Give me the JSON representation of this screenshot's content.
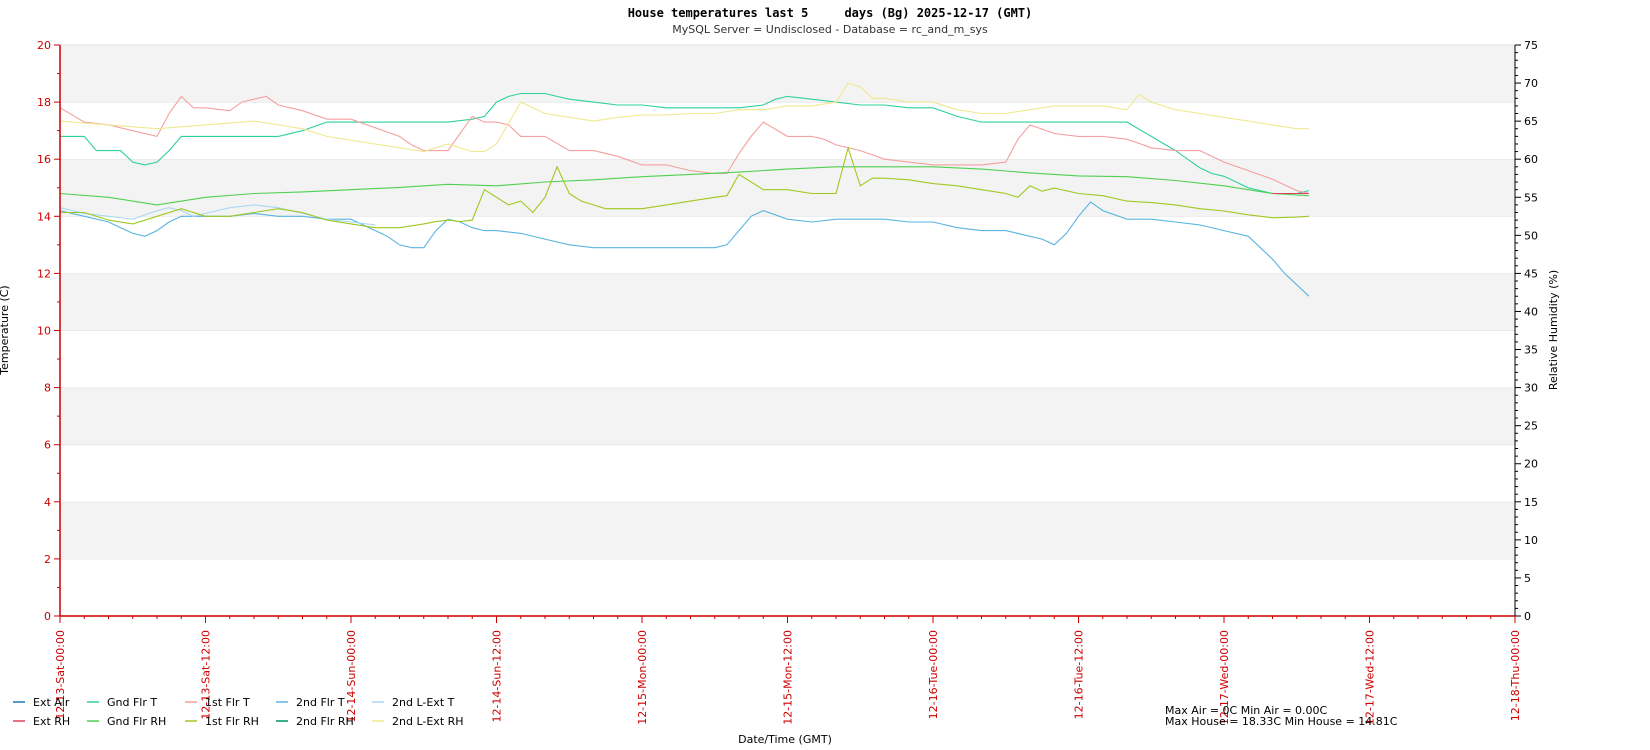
{
  "chart_data": {
    "type": "line",
    "title": "House temperatures last 5     days (Bg) 2025-12-17 (GMT)",
    "subtitle": "MySQL Server = Undisclosed - Database = rc_and_m_sys",
    "xlabel": "Date/Time (GMT)",
    "ylabel_left": "Temperature (C)",
    "ylabel_right": "Relative Humidity (%)",
    "xlim": [
      0,
      120
    ],
    "ylim_left": [
      0,
      20
    ],
    "ylim_right": [
      0,
      75
    ],
    "x_unit": "hours since 2025-12-13 00:00 GMT",
    "grid": "alternating horizontal bands",
    "left_ticks": [
      "0",
      "2",
      "4",
      "6",
      "8",
      "10",
      "12",
      "14",
      "16",
      "18",
      "20"
    ],
    "right_ticks": [
      "0",
      "5",
      "10",
      "15",
      "20",
      "25",
      "30",
      "35",
      "40",
      "45",
      "50",
      "55",
      "60",
      "65",
      "70",
      "75"
    ],
    "x_ticks": [
      {
        "x": 0,
        "label": "12-13-Sat-00:00"
      },
      {
        "x": 12,
        "label": "12-13-Sat-12:00"
      },
      {
        "x": 24,
        "label": "12-14-Sun-00:00"
      },
      {
        "x": 36,
        "label": "12-14-Sun-12:00"
      },
      {
        "x": 48,
        "label": "12-15-Mon-00:00"
      },
      {
        "x": 60,
        "label": "12-15-Mon-12:00"
      },
      {
        "x": 72,
        "label": "12-16-Tue-00:00"
      },
      {
        "x": 84,
        "label": "12-16-Tue-12:00"
      },
      {
        "x": 96,
        "label": "12-17-Wed-00:00"
      },
      {
        "x": 108,
        "label": "12-17-Wed-12:00"
      },
      {
        "x": 120,
        "label": "12-18-Thu-00:00"
      }
    ],
    "legend": [
      {
        "name": "Ext Air",
        "color": "#1f77b4"
      },
      {
        "name": "Gnd Flr T",
        "color": "#2fd0a0"
      },
      {
        "name": "1st Flr T",
        "color": "#f4a0a0"
      },
      {
        "name": "2nd Flr T",
        "color": "#5ab4e0"
      },
      {
        "name": "2nd L-Ext T",
        "color": "#a8d8f0"
      },
      {
        "name": "Ext RH",
        "color": "#e04060"
      },
      {
        "name": "Gnd Flr RH",
        "color": "#50d050"
      },
      {
        "name": "1st Flr RH",
        "color": "#a0c820"
      },
      {
        "name": "2nd Flr RH",
        "color": "#00905a"
      },
      {
        "name": "2nd L-Ext RH",
        "color": "#f0e890"
      }
    ],
    "series": [
      {
        "name": "Gnd Flr T",
        "axis": "left",
        "color": "#2fd0a0",
        "x": [
          0,
          2,
          3,
          5,
          6,
          7,
          8,
          9,
          10,
          11,
          12,
          18,
          20,
          22,
          24,
          26,
          28,
          30,
          32,
          34,
          35,
          36,
          37,
          38,
          39,
          40,
          41,
          42,
          44,
          46,
          48,
          50,
          52,
          54,
          56,
          58,
          59,
          60,
          62,
          64,
          66,
          68,
          70,
          72,
          74,
          76,
          78,
          80,
          82,
          84,
          86,
          88,
          90,
          92,
          93,
          94,
          95,
          96,
          97,
          98,
          99,
          100,
          101,
          102,
          103
        ],
        "y": [
          16.8,
          16.8,
          16.3,
          16.3,
          15.9,
          15.8,
          15.9,
          16.3,
          16.8,
          16.8,
          16.8,
          16.8,
          17.0,
          17.3,
          17.3,
          17.3,
          17.3,
          17.3,
          17.3,
          17.4,
          17.5,
          18.0,
          18.2,
          18.3,
          18.3,
          18.3,
          18.2,
          18.1,
          18.0,
          17.9,
          17.9,
          17.8,
          17.8,
          17.8,
          17.8,
          17.9,
          18.1,
          18.2,
          18.1,
          18.0,
          17.9,
          17.9,
          17.8,
          17.8,
          17.5,
          17.3,
          17.3,
          17.3,
          17.3,
          17.3,
          17.3,
          17.3,
          16.8,
          16.3,
          16.0,
          15.7,
          15.5,
          15.4,
          15.2,
          15.0,
          14.9,
          14.8,
          14.8,
          14.8,
          14.9
        ]
      },
      {
        "name": "1st Flr T",
        "axis": "left",
        "color": "#f4a0a0",
        "x": [
          0,
          2,
          4,
          6,
          8,
          9,
          10,
          11,
          12,
          14,
          15,
          16,
          17,
          18,
          20,
          22,
          24,
          26,
          28,
          29,
          30,
          32,
          33,
          34,
          35,
          36,
          37,
          38,
          40,
          42,
          44,
          46,
          48,
          50,
          52,
          54,
          55,
          56,
          57,
          58,
          60,
          62,
          63,
          64,
          66,
          68,
          70,
          72,
          74,
          76,
          78,
          79,
          80,
          82,
          84,
          86,
          88,
          90,
          92,
          94,
          96,
          98,
          100,
          102,
          103
        ],
        "y": [
          17.8,
          17.3,
          17.2,
          17.0,
          16.8,
          17.6,
          18.2,
          17.8,
          17.8,
          17.7,
          18.0,
          18.1,
          18.2,
          17.9,
          17.7,
          17.4,
          17.4,
          17.1,
          16.8,
          16.5,
          16.3,
          16.3,
          16.9,
          17.5,
          17.3,
          17.3,
          17.2,
          16.8,
          16.8,
          16.3,
          16.3,
          16.1,
          15.8,
          15.8,
          15.6,
          15.5,
          15.5,
          16.2,
          16.8,
          17.3,
          16.8,
          16.8,
          16.7,
          16.5,
          16.3,
          16.0,
          15.9,
          15.8,
          15.8,
          15.8,
          15.9,
          16.7,
          17.2,
          16.9,
          16.8,
          16.8,
          16.7,
          16.4,
          16.3,
          16.3,
          15.9,
          15.6,
          15.3,
          14.9,
          14.8
        ]
      },
      {
        "name": "2nd Flr T",
        "axis": "left",
        "color": "#5ab4e0",
        "x": [
          0,
          2,
          4,
          5,
          6,
          7,
          8,
          9,
          10,
          12,
          14,
          16,
          18,
          20,
          22,
          24,
          25,
          26,
          27,
          28,
          29,
          30,
          31,
          32,
          33,
          34,
          35,
          36,
          38,
          40,
          42,
          44,
          46,
          48,
          50,
          52,
          54,
          55,
          56,
          57,
          58,
          60,
          62,
          64,
          66,
          68,
          70,
          72,
          74,
          76,
          78,
          80,
          81,
          82,
          83,
          84,
          85,
          86,
          88,
          90,
          92,
          94,
          96,
          98,
          99,
          100,
          101,
          102,
          103
        ],
        "y": [
          14.2,
          14.0,
          13.8,
          13.6,
          13.4,
          13.3,
          13.5,
          13.8,
          14.0,
          14.0,
          14.0,
          14.1,
          14.0,
          14.0,
          13.9,
          13.9,
          13.7,
          13.5,
          13.3,
          13.0,
          12.9,
          12.9,
          13.5,
          13.9,
          13.8,
          13.6,
          13.5,
          13.5,
          13.4,
          13.2,
          13.0,
          12.9,
          12.9,
          12.9,
          12.9,
          12.9,
          12.9,
          13.0,
          13.5,
          14.0,
          14.2,
          13.9,
          13.8,
          13.9,
          13.9,
          13.9,
          13.8,
          13.8,
          13.6,
          13.5,
          13.5,
          13.3,
          13.2,
          13.0,
          13.4,
          14.0,
          14.5,
          14.2,
          13.9,
          13.9,
          13.8,
          13.7,
          13.5,
          13.3,
          12.9,
          12.5,
          12.0,
          11.6,
          11.2
        ]
      },
      {
        "name": "2nd L-Ext T",
        "axis": "left",
        "color": "#a8d8f0",
        "x": [
          0,
          2,
          4,
          6,
          8,
          9,
          10,
          11,
          12,
          14,
          16,
          18,
          20,
          22,
          24,
          26
        ],
        "y": [
          14.3,
          14.1,
          14.0,
          13.9,
          14.2,
          14.3,
          14.2,
          14.0,
          14.1,
          14.3,
          14.4,
          14.3,
          14.1,
          13.9,
          13.8,
          13.7
        ]
      },
      {
        "name": "Gnd Flr RH",
        "axis": "right",
        "color": "#50d050",
        "x": [
          0,
          4,
          8,
          12,
          16,
          20,
          24,
          28,
          32,
          36,
          40,
          44,
          48,
          52,
          56,
          60,
          64,
          68,
          72,
          76,
          80,
          84,
          88,
          92,
          96,
          100,
          103
        ],
        "y": [
          55.5,
          55.0,
          54.0,
          55.0,
          55.5,
          55.7,
          56.0,
          56.3,
          56.7,
          56.5,
          57.0,
          57.3,
          57.7,
          58.0,
          58.3,
          58.7,
          59.0,
          59.0,
          59.0,
          58.7,
          58.2,
          57.8,
          57.7,
          57.2,
          56.5,
          55.5,
          55.2
        ]
      },
      {
        "name": "1st Flr RH",
        "axis": "right",
        "color": "#a0c820",
        "x": [
          0,
          2,
          4,
          6,
          8,
          10,
          12,
          14,
          16,
          18,
          20,
          22,
          24,
          26,
          28,
          30,
          31,
          32,
          33,
          34,
          35,
          36,
          37,
          38,
          39,
          40,
          41,
          42,
          43,
          44,
          45,
          46,
          48,
          50,
          52,
          54,
          55,
          56,
          58,
          60,
          62,
          64,
          65,
          66,
          67,
          68,
          70,
          72,
          74,
          76,
          78,
          79,
          80,
          81,
          82,
          84,
          86,
          88,
          90,
          92,
          94,
          96,
          98,
          100,
          102,
          103
        ],
        "y": [
          53.0,
          53.0,
          52.0,
          51.5,
          52.5,
          53.5,
          52.5,
          52.5,
          53.0,
          53.5,
          53.0,
          52.0,
          51.5,
          51.0,
          51.0,
          51.5,
          51.8,
          52.0,
          51.8,
          52.0,
          56.0,
          55.0,
          54.0,
          54.5,
          53.0,
          55.0,
          59.0,
          55.5,
          54.5,
          54.0,
          53.5,
          53.5,
          53.5,
          54.0,
          54.5,
          55.0,
          55.2,
          58.0,
          56.0,
          56.0,
          55.5,
          55.5,
          61.5,
          56.5,
          57.5,
          57.5,
          57.3,
          56.8,
          56.5,
          56.0,
          55.5,
          55.0,
          56.5,
          55.8,
          56.2,
          55.5,
          55.2,
          54.5,
          54.3,
          54.0,
          53.5,
          53.2,
          52.7,
          52.3,
          52.4,
          52.5
        ]
      },
      {
        "name": "2nd L-Ext RH",
        "axis": "right",
        "color": "#f0e890",
        "x": [
          0,
          4,
          8,
          12,
          16,
          20,
          22,
          24,
          26,
          28,
          30,
          32,
          33,
          34,
          35,
          36,
          38,
          40,
          42,
          44,
          46,
          48,
          50,
          52,
          54,
          56,
          58,
          60,
          62,
          64,
          65,
          66,
          67,
          68,
          70,
          72,
          74,
          76,
          78,
          80,
          82,
          84,
          86,
          88,
          89,
          90,
          92,
          94,
          96,
          98,
          100,
          102,
          103
        ],
        "y": [
          65.0,
          64.5,
          64.0,
          64.5,
          65.0,
          64.0,
          63.0,
          62.5,
          62.0,
          61.5,
          61.0,
          62.0,
          61.5,
          61.0,
          61.0,
          62.0,
          67.5,
          66.0,
          65.5,
          65.0,
          65.5,
          65.8,
          65.8,
          66.0,
          66.0,
          66.5,
          66.5,
          67.0,
          67.0,
          67.5,
          70.0,
          69.5,
          68.0,
          68.0,
          67.5,
          67.5,
          66.5,
          66.0,
          66.0,
          66.5,
          67.0,
          67.0,
          67.0,
          66.5,
          68.5,
          67.5,
          66.5,
          66.0,
          65.5,
          65.0,
          64.5,
          64.0,
          64.0
        ]
      },
      {
        "name": "Ext RH",
        "axis": "right",
        "color": "#e04060",
        "x": [
          100,
          103
        ],
        "y": [
          55.5,
          55.5
        ]
      }
    ],
    "stats": [
      "Max Air = 0C Min Air = 0.00C",
      "Max House = 18.33C Min House = 14.81C"
    ]
  }
}
